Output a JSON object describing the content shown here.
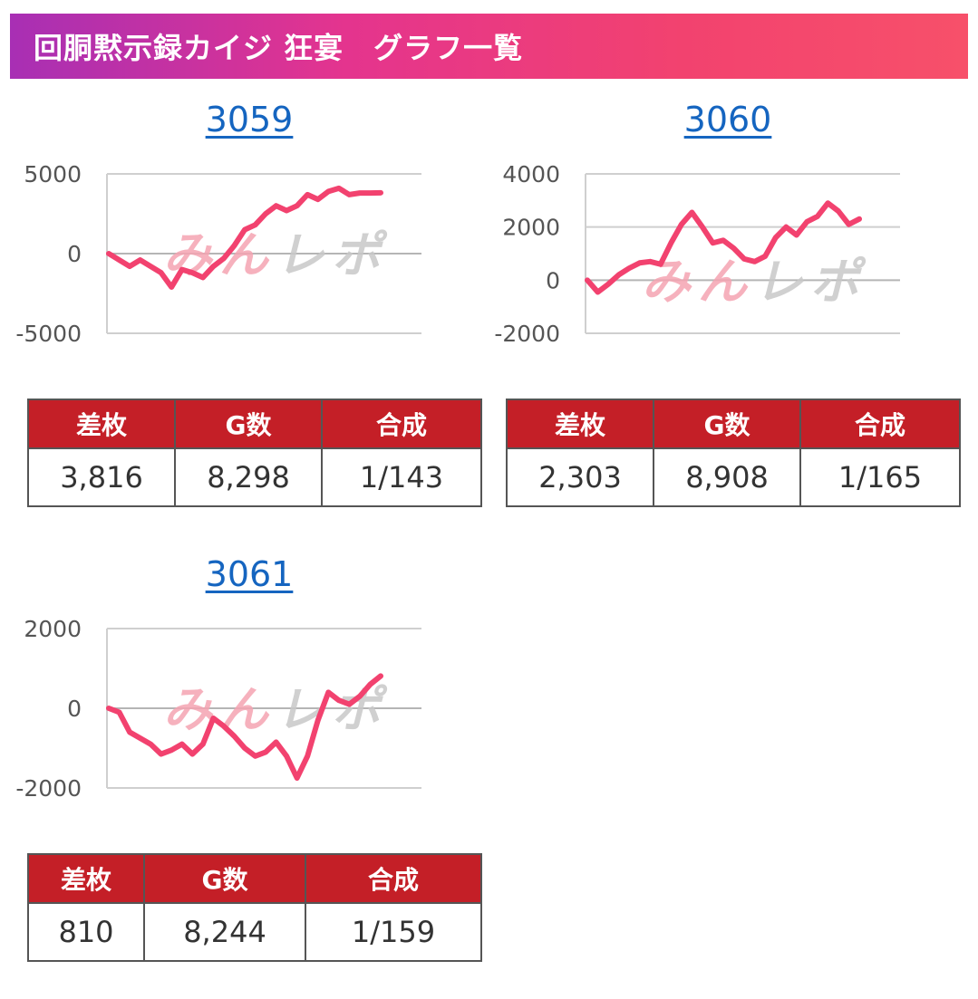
{
  "header": {
    "title": "回胴黙示録カイジ 狂宴　グラフ一覧"
  },
  "watermark": {
    "text": "みんレポ"
  },
  "stats_headers": [
    "差枚",
    "G数",
    "合成"
  ],
  "colors": {
    "line": "#f2426f",
    "grid": "#cfcfcf",
    "axis_text": "#555555",
    "table_header": "#c41f27",
    "link": "#1565c0"
  },
  "cards": [
    {
      "id": "3059",
      "stats": {
        "samai": "3,816",
        "games": "8,298",
        "gousei": "1/143"
      }
    },
    {
      "id": "3060",
      "stats": {
        "samai": "2,303",
        "games": "8,908",
        "gousei": "1/165"
      }
    },
    {
      "id": "3061",
      "stats": {
        "samai": "810",
        "games": "8,244",
        "gousei": "1/159"
      }
    }
  ],
  "chart_data": [
    {
      "type": "line",
      "title": "3059",
      "ylim": [
        -5000,
        5000
      ],
      "y_ticks": [
        "5000",
        "0",
        "-5000"
      ],
      "y_tick_values": [
        5000,
        0,
        -5000
      ],
      "grid": true,
      "x": [
        0,
        1,
        2,
        3,
        4,
        5,
        6,
        7,
        8,
        9,
        10,
        11,
        12,
        13,
        14,
        15,
        16,
        17,
        18,
        19,
        20,
        21,
        22,
        23,
        24,
        25,
        26
      ],
      "values": [
        0,
        -400,
        -800,
        -400,
        -800,
        -1200,
        -2100,
        -1000,
        -1200,
        -1500,
        -800,
        -300,
        500,
        1500,
        1800,
        2500,
        3000,
        2700,
        3000,
        3700,
        3400,
        3900,
        4100,
        3700,
        3800,
        3800,
        3816
      ]
    },
    {
      "type": "line",
      "title": "3060",
      "ylim": [
        -2000,
        4000
      ],
      "y_ticks": [
        "4000",
        "2000",
        "0",
        "-2000"
      ],
      "y_tick_values": [
        4000,
        2000,
        0,
        -2000
      ],
      "grid": true,
      "x": [
        0,
        1,
        2,
        3,
        4,
        5,
        6,
        7,
        8,
        9,
        10,
        11,
        12,
        13,
        14,
        15,
        16,
        17,
        18,
        19,
        20,
        21,
        22,
        23,
        24,
        25,
        26
      ],
      "values": [
        0,
        -450,
        -150,
        200,
        450,
        650,
        700,
        600,
        1400,
        2100,
        2550,
        2000,
        1400,
        1500,
        1200,
        800,
        700,
        900,
        1600,
        2000,
        1700,
        2200,
        2400,
        2900,
        2600,
        2100,
        2303
      ]
    },
    {
      "type": "line",
      "title": "3061",
      "ylim": [
        -2000,
        2000
      ],
      "y_ticks": [
        "2000",
        "0",
        "-2000"
      ],
      "y_tick_values": [
        2000,
        0,
        -2000
      ],
      "grid": true,
      "x": [
        0,
        1,
        2,
        3,
        4,
        5,
        6,
        7,
        8,
        9,
        10,
        11,
        12,
        13,
        14,
        15,
        16,
        17,
        18,
        19,
        20,
        21,
        22,
        23,
        24,
        25,
        26
      ],
      "values": [
        0,
        -100,
        -600,
        -750,
        -900,
        -1150,
        -1050,
        -900,
        -1150,
        -900,
        -250,
        -450,
        -700,
        -1000,
        -1200,
        -1100,
        -850,
        -1200,
        -1750,
        -1200,
        -300,
        400,
        200,
        100,
        300,
        600,
        810
      ]
    }
  ]
}
